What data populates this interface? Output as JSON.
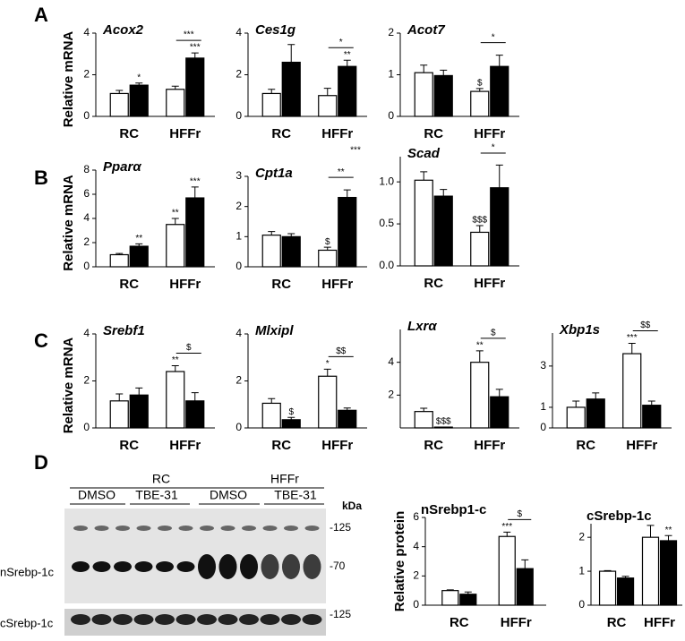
{
  "figure": {
    "panel_labels": [
      "A",
      "B",
      "C",
      "D"
    ],
    "stray_annotation": "***",
    "blot": {
      "groups": [
        "RC",
        "HFFr"
      ],
      "treatments": [
        "DMSO",
        "TBE-31",
        "DMSO",
        "TBE-31"
      ],
      "unit": "kDa",
      "markers": [
        "-125",
        "-70",
        "-125"
      ],
      "rows": [
        "nSrebp-1c",
        "cSrebp-1c"
      ]
    }
  },
  "chart_data": [
    {
      "type": "bar",
      "title": "Acox2",
      "ylabel": "Relative mRNA",
      "categories": [
        "RC",
        "HFFr"
      ],
      "ylim": [
        0,
        4
      ],
      "yticks": [
        0,
        2,
        4
      ],
      "bracket_labels": [
        null,
        "***"
      ],
      "series": [
        {
          "color": "#ffffff",
          "values": [
            1.1,
            1.3
          ],
          "errors": [
            0.15,
            0.15
          ],
          "sig_labels": [
            null,
            null
          ]
        },
        {
          "color": "#000000",
          "values": [
            1.5,
            2.8
          ],
          "errors": [
            0.1,
            0.25
          ],
          "sig_labels": [
            "*",
            "***"
          ]
        }
      ]
    },
    {
      "type": "bar",
      "title": "Ces1g",
      "categories": [
        "RC",
        "HFFr"
      ],
      "ylim": [
        0,
        4
      ],
      "yticks": [
        0,
        2,
        4
      ],
      "bracket_labels": [
        null,
        "*"
      ],
      "series": [
        {
          "color": "#ffffff",
          "values": [
            1.1,
            1.0
          ],
          "errors": [
            0.2,
            0.35
          ],
          "sig_labels": [
            null,
            null
          ]
        },
        {
          "color": "#000000",
          "values": [
            2.6,
            2.4
          ],
          "errors": [
            0.85,
            0.3
          ],
          "sig_labels": [
            null,
            "**"
          ]
        }
      ]
    },
    {
      "type": "bar",
      "title": "Acot7",
      "categories": [
        "RC",
        "HFFr"
      ],
      "ylim": [
        0,
        2
      ],
      "yticks": [
        0,
        1,
        2
      ],
      "bracket_labels": [
        null,
        "*"
      ],
      "series": [
        {
          "color": "#ffffff",
          "values": [
            1.05,
            0.6
          ],
          "errors": [
            0.18,
            0.07
          ],
          "sig_labels": [
            null,
            "$"
          ]
        },
        {
          "color": "#000000",
          "values": [
            0.98,
            1.2
          ],
          "errors": [
            0.13,
            0.27
          ],
          "sig_labels": [
            null,
            null
          ]
        }
      ]
    },
    {
      "type": "bar",
      "title": "Pparα",
      "ylabel": "Relative mRNA",
      "categories": [
        "RC",
        "HFFr"
      ],
      "ylim": [
        0,
        8
      ],
      "yticks": [
        0,
        2,
        4,
        6,
        8
      ],
      "bracket_labels": [
        null,
        null
      ],
      "series": [
        {
          "color": "#ffffff",
          "values": [
            1.0,
            3.5
          ],
          "errors": [
            0.1,
            0.5
          ],
          "sig_labels": [
            null,
            "**"
          ]
        },
        {
          "color": "#000000",
          "values": [
            1.7,
            5.7
          ],
          "errors": [
            0.2,
            0.9
          ],
          "sig_labels": [
            "**",
            "***"
          ]
        }
      ]
    },
    {
      "type": "bar",
      "title": "Cpt1a",
      "categories": [
        "RC",
        "HFFr"
      ],
      "ylim": [
        0,
        3
      ],
      "yticks": [
        0,
        1,
        2,
        3
      ],
      "bracket_labels": [
        null,
        "**"
      ],
      "series": [
        {
          "color": "#ffffff",
          "values": [
            1.05,
            0.55
          ],
          "errors": [
            0.12,
            0.1
          ],
          "sig_labels": [
            null,
            "$"
          ]
        },
        {
          "color": "#000000",
          "values": [
            1.0,
            2.3
          ],
          "errors": [
            0.1,
            0.25
          ],
          "sig_labels": [
            null,
            null
          ]
        }
      ]
    },
    {
      "type": "bar",
      "title": "Scad",
      "categories": [
        "RC",
        "HFFr"
      ],
      "ylim": [
        0,
        1.3
      ],
      "yticks": [
        {
          "value": 0,
          "label": "0.0"
        },
        {
          "value": 0.5,
          "label": "0.5"
        },
        {
          "value": 1,
          "label": "1.0"
        }
      ],
      "bracket_labels": [
        null,
        "*"
      ],
      "series": [
        {
          "color": "#ffffff",
          "values": [
            1.02,
            0.4
          ],
          "errors": [
            0.1,
            0.08
          ],
          "sig_labels": [
            null,
            "$$$"
          ]
        },
        {
          "color": "#000000",
          "values": [
            0.83,
            0.93
          ],
          "errors": [
            0.08,
            0.27
          ],
          "sig_labels": [
            null,
            null
          ]
        }
      ]
    },
    {
      "type": "bar",
      "title": "Srebf1",
      "ylabel": "Relative mRNA",
      "categories": [
        "RC",
        "HFFr"
      ],
      "ylim": [
        0,
        4
      ],
      "yticks": [
        0,
        2,
        4
      ],
      "bracket_labels": [
        null,
        "$"
      ],
      "series": [
        {
          "color": "#ffffff",
          "values": [
            1.15,
            2.4
          ],
          "errors": [
            0.3,
            0.25
          ],
          "sig_labels": [
            null,
            "**"
          ]
        },
        {
          "color": "#000000",
          "values": [
            1.4,
            1.15
          ],
          "errors": [
            0.3,
            0.35
          ],
          "sig_labels": [
            null,
            null
          ]
        }
      ]
    },
    {
      "type": "bar",
      "title": "Mlxipl",
      "categories": [
        "RC",
        "HFFr"
      ],
      "ylim": [
        0,
        4
      ],
      "yticks": [
        0,
        2,
        4
      ],
      "bracket_labels": [
        null,
        "$$"
      ],
      "series": [
        {
          "color": "#ffffff",
          "values": [
            1.05,
            2.2
          ],
          "errors": [
            0.2,
            0.3
          ],
          "sig_labels": [
            null,
            "*"
          ]
        },
        {
          "color": "#000000",
          "values": [
            0.35,
            0.75
          ],
          "errors": [
            0.1,
            0.1
          ],
          "sig_labels": [
            "$",
            null
          ]
        }
      ]
    },
    {
      "type": "bar",
      "title": "Lxrα",
      "categories": [
        "RC",
        "HFFr"
      ],
      "ylim": [
        0,
        6
      ],
      "yticks": [
        2,
        4
      ],
      "bracket_labels": [
        null,
        "$"
      ],
      "series": [
        {
          "color": "#ffffff",
          "values": [
            1.0,
            4.0
          ],
          "errors": [
            0.2,
            0.7
          ],
          "sig_labels": [
            null,
            "**"
          ]
        },
        {
          "color": "#000000",
          "values": [
            0.05,
            1.9
          ],
          "errors": [
            0,
            0.45
          ],
          "sig_labels": [
            "$$$",
            null
          ]
        }
      ]
    },
    {
      "type": "bar",
      "title": "Xbp1s",
      "categories": [
        "RC",
        "HFFr"
      ],
      "ylim": [
        0,
        4.6
      ],
      "yticks": [
        0,
        1,
        3
      ],
      "bracket_labels": [
        null,
        "$$"
      ],
      "series": [
        {
          "color": "#ffffff",
          "values": [
            1.0,
            3.6
          ],
          "errors": [
            0.3,
            0.5
          ],
          "sig_labels": [
            null,
            "***"
          ]
        },
        {
          "color": "#000000",
          "values": [
            1.4,
            1.1
          ],
          "errors": [
            0.3,
            0.2
          ],
          "sig_labels": [
            null,
            null
          ]
        }
      ]
    },
    {
      "type": "bar",
      "title": "nSrebp1-c",
      "ylabel": "Relative protein",
      "categories": [
        "RC",
        "HFFr"
      ],
      "ylim": [
        0,
        6
      ],
      "yticks": [
        0,
        2,
        4,
        6
      ],
      "bracket_labels": [
        null,
        "$"
      ],
      "series": [
        {
          "color": "#ffffff",
          "values": [
            1.0,
            4.7
          ],
          "errors": [
            0.05,
            0.3
          ],
          "sig_labels": [
            null,
            "***"
          ]
        },
        {
          "color": "#000000",
          "values": [
            0.75,
            2.5
          ],
          "errors": [
            0.15,
            0.6
          ],
          "sig_labels": [
            null,
            null
          ]
        }
      ]
    },
    {
      "type": "bar",
      "title": "cSrebp-1c",
      "categories": [
        "RC",
        "HFFr"
      ],
      "ylim": [
        0,
        2.4
      ],
      "yticks": [
        0,
        1,
        2
      ],
      "bracket_labels": [
        null,
        null
      ],
      "series": [
        {
          "color": "#ffffff",
          "values": [
            1.0,
            2.0
          ],
          "errors": [
            0.02,
            0.35
          ],
          "sig_labels": [
            null,
            null
          ]
        },
        {
          "color": "#000000",
          "values": [
            0.8,
            1.9
          ],
          "errors": [
            0.05,
            0.15
          ],
          "sig_labels": [
            null,
            "**"
          ]
        }
      ]
    }
  ]
}
